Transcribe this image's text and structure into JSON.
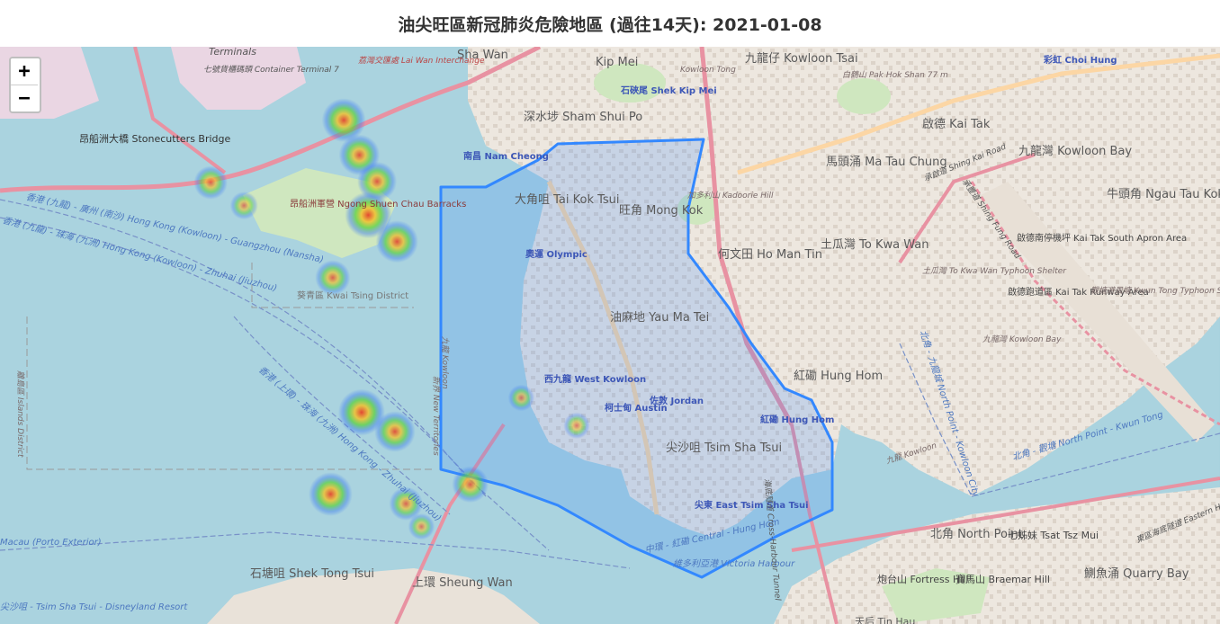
{
  "title": "油尖旺區新冠肺炎危險地區 (過往14天): 2021-01-08",
  "zoom": {
    "in_label": "+",
    "out_label": "−"
  },
  "colors": {
    "water": "#aad3df",
    "land": "#f2efe9",
    "polygon_stroke": "#3388ff",
    "polygon_fill": "#3388ff"
  },
  "labels": {
    "sha_wan": "Sha Wan",
    "kip_mei": "Kip Mei",
    "kowloon_tong": "Kowloon Tong",
    "kowloon_tsai": "九龍仔 Kowloon Tsai",
    "pak_hok_shan": "白鶴山 Pak Hok Shan 77 m",
    "sham_shui_po": "深水埗 Sham Shui Po",
    "shek_kip_mei": "石硤尾 Shek Kip Mei",
    "kai_tak": "啟德 Kai Tak",
    "ma_tau_chung": "馬頭涌 Ma Tau Chung",
    "kowloon_bay": "九龍灣 Kowloon Bay",
    "tai_kok_tsui": "大角咀 Tai Kok Tsui",
    "mong_kok": "旺角 Mong Kok",
    "kadoorie_hill": "加多利山 Kadoorie Hill",
    "olympic": "奧運 Olympic",
    "ho_man_tin": "何文田 Ho Man Tin",
    "to_kwa_wan": "土瓜灣 To Kwa Wan",
    "yau_ma_tei": "油麻地 Yau Ma Tei",
    "west_kowloon": "西九龍 West Kowloon",
    "jordan": "佐敦 Jordan",
    "austin": "柯士甸 Austin",
    "hung_hom": "紅磡 Hung Hom",
    "hung_hom_station": "紅磡 Hung Hom",
    "tsim_sha_tsui": "尖沙咀 Tsim Sha Tsui",
    "east_tsim_sha_tsui": "尖東 East Tsim Sha Tsui",
    "stonecutters_bridge": "昂船洲大橋 Stonecutters Bridge",
    "ngong_shuen_chau": "昂船洲軍營 Ngong Shuen Chau Barracks",
    "kwai_tsing_district": "葵青區 Kwai Tsing District",
    "islands_district": "離島區 Islands District",
    "north_point": "北角 North Point",
    "tsat_tsz_mui": "七姊妹 Tsat Tsz Mui",
    "quarry_bay": "鰂魚涌 Quarry Bay",
    "fortress_hill": "炮台山 Fortress Hill",
    "braemar_hill": "寶馬山 Braemar Hill",
    "sheung_wan": "上環 Sheung Wan",
    "shek_tong_tsui": "石塘咀 Shek Tong Tsui",
    "tin_hau": "天后 Tin Hau",
    "choi_hung": "彩虹 Choi Hung",
    "ngau_tau_kok": "牛頭角 Ngau Tau Kok",
    "kai_tak_south": "啟德南停機坪 Kai Tak South Apron Area",
    "kai_tak_runway": "啟德跑道區 Kai Tak Runway Area",
    "kowloon_typhoon_shelter": "土瓜灣 To Kwa Wan Typhoon Shelter",
    "kwun_tong_typhoon_shelter": "觀塘避風塘 Kwun Tong Typhoon Shelter",
    "kowloon_bay_water": "九龍灣 Kowloon Bay",
    "victoria_harbour": "維多利亞港 Victoria Harbour",
    "lai_wan_interchange": "荔灣交匯處 Lai Wan Interchange",
    "container_terminal": "七號貨櫃碼頭 Container Terminal 7",
    "terminals": "Terminals",
    "kowloon_water": "九龍 Kowloon",
    "new_territories": "新界 New Territories",
    "ferry_kowloon_zhuhai": "香港 (九龍) - 珠海 (九洲) Hong Kong (Kowloon) - Zhuhai (Jiuzhou)",
    "ferry_guangzhou": "香港 (九龍) - 廣州 (南沙) Hong Kong (Kowloon) - Guangzhou (Nansha)",
    "ferry_shanghai": "香港 (上環) - 珠海 (九洲) Hong Kong - Zhuhai (Jiuzhou)",
    "macau_porto_exterior": "Macau (Porto Exterior)",
    "tst_disneyland": "尖沙咀 - Tsim Sha Tsui - Disneyland Resort",
    "central_hung_hom": "中環 - 紅磡 Central - Hung Hom",
    "north_point_kwun_tong": "北角 - 觀塘 North Point - Kwun Tong",
    "north_point_kowloon_city": "北角 - 九龍城 North Point - Kowloon City",
    "cross_harbour_tunnel": "海底隧道 Cross-Harbour Tunnel",
    "eastern_harbour": "東區海底隧道 Eastern Harbour",
    "shing_kai_road": "承啟道 Shing Kai Road",
    "shing_fung_road": "承豐道 Shing Fung Road",
    "kowloon_victoria": "九龍 Kowloon",
    "nam_cheong": "南昌 Nam Cheong",
    "kowloon_bay_sea": "九龍灣 Kowloon Bay"
  },
  "heat_points": [
    {
      "lng": 114.1705,
      "lat": 22.3259,
      "w": 0.9
    },
    {
      "lng": 114.1712,
      "lat": 22.323,
      "w": 0.8
    },
    {
      "lng": 114.172,
      "lat": 22.3208,
      "w": 0.75
    },
    {
      "lng": 114.1716,
      "lat": 22.318,
      "w": 1.0
    },
    {
      "lng": 114.1729,
      "lat": 22.3158,
      "w": 0.85
    },
    {
      "lng": 114.17,
      "lat": 22.3128,
      "w": 0.6
    },
    {
      "lng": 114.1713,
      "lat": 22.3016,
      "w": 1.0
    },
    {
      "lng": 114.1728,
      "lat": 22.3,
      "w": 0.8
    },
    {
      "lng": 114.1699,
      "lat": 22.2948,
      "w": 0.9
    },
    {
      "lng": 114.1733,
      "lat": 22.294,
      "w": 0.55
    },
    {
      "lng": 114.1762,
      "lat": 22.2956,
      "w": 0.65
    },
    {
      "lng": 114.1645,
      "lat": 22.3207,
      "w": 0.55
    },
    {
      "lng": 114.166,
      "lat": 22.3188,
      "w": 0.35
    },
    {
      "lng": 114.1785,
      "lat": 22.3028,
      "w": 0.3
    },
    {
      "lng": 114.181,
      "lat": 22.3005,
      "w": 0.3
    },
    {
      "lng": 114.174,
      "lat": 22.2921,
      "w": 0.3
    }
  ]
}
